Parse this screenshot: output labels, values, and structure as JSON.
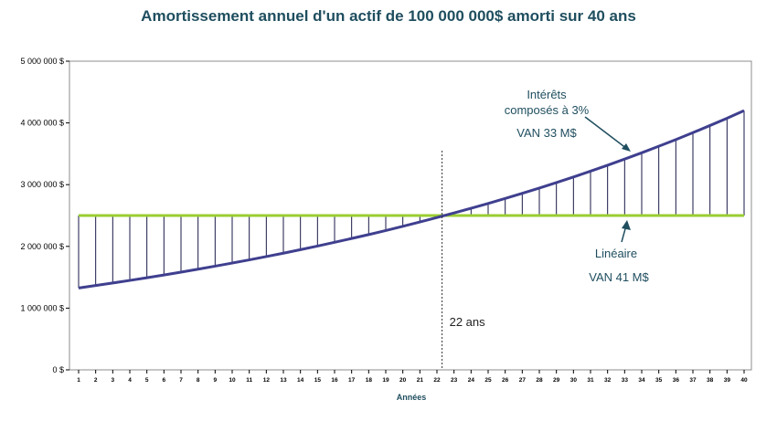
{
  "chart_data": {
    "type": "line",
    "title": "Amortissement annuel d'un actif de 100 000 000$ amorti sur 40 ans",
    "xlabel": "Années",
    "ylabel": "",
    "x": [
      1,
      2,
      3,
      4,
      5,
      6,
      7,
      8,
      9,
      10,
      11,
      12,
      13,
      14,
      15,
      16,
      17,
      18,
      19,
      20,
      21,
      22,
      23,
      24,
      25,
      26,
      27,
      28,
      29,
      30,
      31,
      32,
      33,
      34,
      35,
      36,
      37,
      38,
      39,
      40
    ],
    "ylim": [
      0,
      5000000
    ],
    "ytick_labels": [
      "0 $",
      "1 000 000 $",
      "2 000 000 $",
      "3 000 000 $",
      "4 000 000 $",
      "5 000 000 $"
    ],
    "ytick_values": [
      0,
      1000000,
      2000000,
      3000000,
      4000000,
      5000000
    ],
    "series": [
      {
        "key": "linear",
        "color": "#9acd32",
        "values": [
          2500000,
          2500000,
          2500000,
          2500000,
          2500000,
          2500000,
          2500000,
          2500000,
          2500000,
          2500000,
          2500000,
          2500000,
          2500000,
          2500000,
          2500000,
          2500000,
          2500000,
          2500000,
          2500000,
          2500000,
          2500000,
          2500000,
          2500000,
          2500000,
          2500000,
          2500000,
          2500000,
          2500000,
          2500000,
          2500000,
          2500000,
          2500000,
          2500000,
          2500000,
          2500000,
          2500000,
          2500000,
          2500000,
          2500000,
          2500000
        ]
      },
      {
        "key": "compound",
        "color": "#3f3f8f",
        "values": [
          1326000,
          1366000,
          1407000,
          1449000,
          1492000,
          1537000,
          1583000,
          1631000,
          1680000,
          1730000,
          1782000,
          1835000,
          1890000,
          1947000,
          2005000,
          2066000,
          2128000,
          2191000,
          2257000,
          2325000,
          2395000,
          2467000,
          2541000,
          2617000,
          2695000,
          2776000,
          2859000,
          2945000,
          3033000,
          3124000,
          3218000,
          3315000,
          3414000,
          3516000,
          3622000,
          3730000,
          3842000,
          3958000,
          4076000,
          4199000
        ]
      }
    ],
    "vertical_marker": {
      "x": 22.3,
      "label": "22 ans"
    },
    "annotations": {
      "compound_line1": "Intérêts",
      "compound_line2": "composés à 3%",
      "compound_van": "VAN 33 M$",
      "linear_name": "Linéaire",
      "linear_van": "VAN 41 M$"
    },
    "grid": false,
    "legend": "none"
  }
}
